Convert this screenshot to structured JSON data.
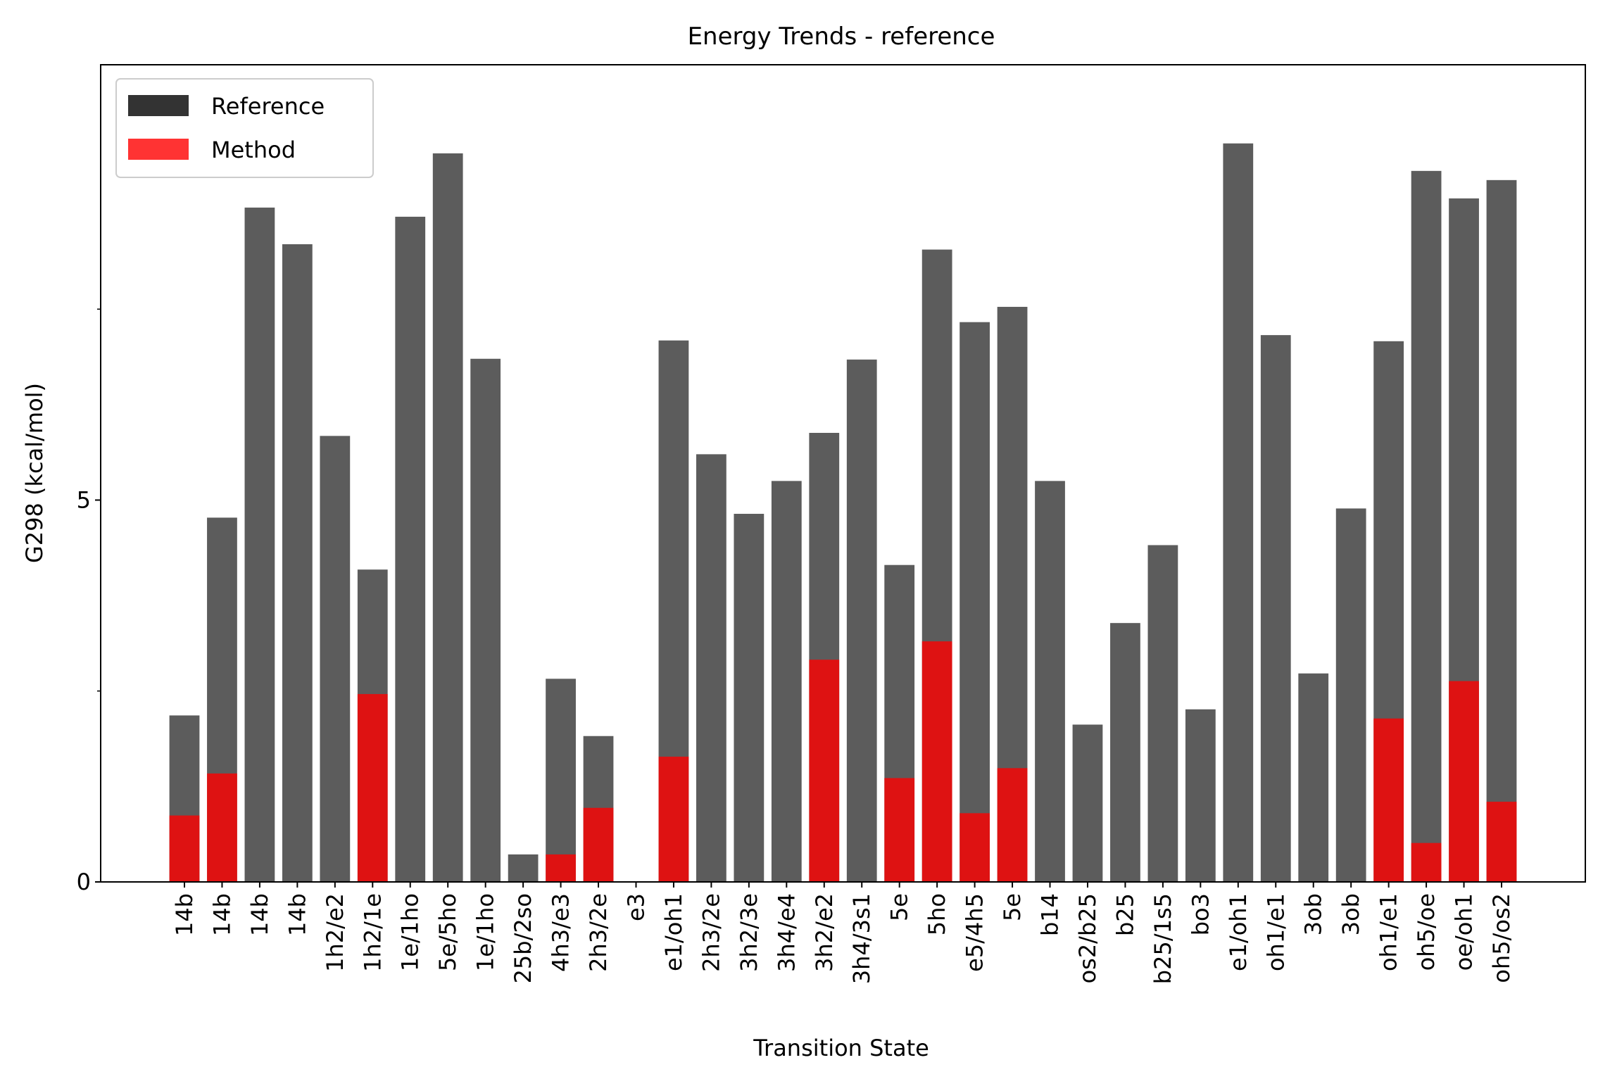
{
  "chart_data": {
    "type": "bar",
    "title": "Energy Trends - reference",
    "xlabel": "Transition State",
    "ylabel": "G298 (kcal/mol)",
    "ylim": [
      0,
      10.7
    ],
    "yticks": [
      0,
      5
    ],
    "grid": false,
    "legend_position": "top-left",
    "categories": [
      "14b",
      "14b",
      "14b",
      "14b",
      "1h2/e2",
      "1h2/1e",
      "1e/1ho",
      "5e/5ho",
      "1e/1ho",
      "25b/2so",
      "4h3/e3",
      "2h3/2e",
      "e3",
      "e1/oh1",
      "2h3/2e",
      "3h2/3e",
      "3h4/e4",
      "3h2/e2",
      "3h4/3s1",
      "5e",
      "5ho",
      "e5/4h5",
      "5e",
      "b14",
      "os2/b25",
      "b25",
      "b25/1s5",
      "bo3",
      "e1/oh1",
      "oh1/e1",
      "3ob",
      "3ob",
      "oh1/e1",
      "oh5/oe",
      "oe/oh1",
      "oh5/os2"
    ],
    "series": [
      {
        "name": "Reference",
        "color": "#333333",
        "values": [
          2.18,
          4.77,
          8.83,
          8.35,
          5.84,
          4.09,
          8.71,
          9.54,
          6.85,
          0.36,
          2.66,
          1.91,
          0.0,
          7.09,
          5.6,
          4.82,
          5.25,
          5.88,
          6.84,
          4.15,
          8.28,
          7.33,
          7.53,
          5.25,
          2.06,
          3.39,
          4.41,
          2.26,
          9.67,
          7.16,
          2.73,
          4.89,
          7.08,
          9.31,
          8.95,
          9.19
        ]
      },
      {
        "name": "Method",
        "color": "#ff0000",
        "values": [
          0.87,
          1.42,
          0.0,
          0.0,
          0.0,
          2.46,
          0.0,
          0.0,
          0.0,
          0.0,
          0.36,
          0.97,
          0.0,
          1.64,
          0.0,
          0.0,
          0.0,
          2.91,
          0.0,
          1.36,
          3.15,
          0.9,
          1.49,
          0.0,
          0.0,
          0.0,
          0.0,
          0.0,
          0.0,
          0.0,
          0.0,
          0.0,
          2.14,
          0.51,
          2.63,
          1.05
        ]
      }
    ]
  }
}
